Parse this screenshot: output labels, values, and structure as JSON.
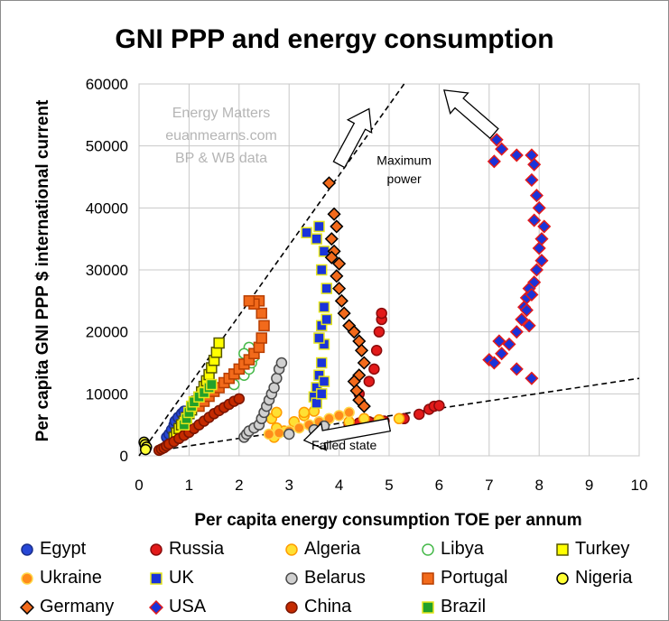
{
  "chart_data": {
    "type": "scatter",
    "title": "GNI PPP and energy consumption",
    "xlabel": "Per capita energy consumption TOE per annum",
    "ylabel": "Per capita GNI PPP $ international current",
    "xlim": [
      0,
      10
    ],
    "ylim": [
      0,
      60000
    ],
    "xticks": [
      "0",
      "1",
      "2",
      "3",
      "4",
      "5",
      "6",
      "7",
      "8",
      "9",
      "10"
    ],
    "yticks": [
      "0",
      "10000",
      "20000",
      "30000",
      "40000",
      "50000",
      "60000"
    ],
    "grid": true,
    "legend_position": "bottom",
    "watermark": [
      "Energy Matters",
      "euanmearns.com",
      "BP & WB data"
    ],
    "annotations": [
      {
        "text": "Maximum",
        "x": 5.3,
        "y": 47000
      },
      {
        "text": "power",
        "x": 5.3,
        "y": 44000
      },
      {
        "text": "Failed state",
        "x": 4.1,
        "y": 1000
      }
    ],
    "arrows": [
      {
        "from": [
          4.0,
          47000
        ],
        "to": [
          4.6,
          56000
        ]
      },
      {
        "from": [
          7.1,
          52000
        ],
        "to": [
          6.1,
          59000
        ]
      },
      {
        "from": [
          5.0,
          5000
        ],
        "to": [
          3.3,
          2500
        ]
      }
    ],
    "lines": [
      {
        "name": "Maximum power",
        "from": [
          0,
          0
        ],
        "to": [
          5.3,
          60000
        ],
        "style": "dashed"
      },
      {
        "name": "Failed state",
        "from": [
          0.5,
          1000
        ],
        "to": [
          10,
          12500
        ],
        "style": "dashed"
      }
    ],
    "series": [
      {
        "name": "Egypt",
        "marker": "circle",
        "color": "#2747d6",
        "edge": "#1a2e8a",
        "points": [
          [
            0.55,
            3000
          ],
          [
            0.6,
            3500
          ],
          [
            0.65,
            4200
          ],
          [
            0.7,
            5000
          ],
          [
            0.72,
            5600
          ],
          [
            0.78,
            6200
          ],
          [
            0.85,
            6800
          ],
          [
            0.9,
            7200
          ]
        ]
      },
      {
        "name": "Russia",
        "marker": "circle",
        "color": "#e21a1a",
        "edge": "#8a0b0b",
        "points": [
          [
            4.2,
            5000
          ],
          [
            4.4,
            5300
          ],
          [
            4.6,
            5500
          ],
          [
            4.9,
            5600
          ],
          [
            5.3,
            6000
          ],
          [
            5.6,
            6700
          ],
          [
            5.8,
            7500
          ],
          [
            5.9,
            8000
          ],
          [
            6.0,
            8100
          ],
          [
            4.4,
            10000
          ],
          [
            4.6,
            12000
          ],
          [
            4.7,
            14000
          ],
          [
            4.75,
            17000
          ],
          [
            4.8,
            20000
          ],
          [
            4.85,
            22000
          ],
          [
            4.85,
            23000
          ]
        ]
      },
      {
        "name": "Algeria",
        "marker": "circle",
        "color": "#ffe033",
        "edge": "#ff9c00",
        "points": [
          [
            2.7,
            3000
          ],
          [
            2.9,
            4000
          ],
          [
            2.75,
            4500
          ],
          [
            3.1,
            5500
          ],
          [
            3.3,
            6500
          ],
          [
            3.5,
            7200
          ],
          [
            3.3,
            7000
          ],
          [
            4.2,
            5500
          ],
          [
            4.5,
            6000
          ],
          [
            4.8,
            5800
          ],
          [
            5.2,
            6000
          ],
          [
            2.65,
            6000
          ],
          [
            2.75,
            7000
          ]
        ]
      },
      {
        "name": "Libya",
        "marker": "circle",
        "color": "#ffffff",
        "edge": "#46b94a",
        "points": [
          [
            1.9,
            11500
          ],
          [
            2.1,
            13000
          ],
          [
            2.2,
            14000
          ],
          [
            2.25,
            15000
          ],
          [
            2.3,
            16000
          ],
          [
            2.2,
            17500
          ],
          [
            2.1,
            16500
          ]
        ]
      },
      {
        "name": "Turkey",
        "marker": "square",
        "color": "#ffff00",
        "edge": "#555500",
        "points": [
          [
            0.7,
            3000
          ],
          [
            0.75,
            3700
          ],
          [
            0.8,
            4400
          ],
          [
            0.85,
            5000
          ],
          [
            0.9,
            5600
          ],
          [
            0.95,
            6200
          ],
          [
            1.0,
            6800
          ],
          [
            1.05,
            7400
          ],
          [
            1.1,
            8100
          ],
          [
            1.15,
            8800
          ],
          [
            1.2,
            9500
          ],
          [
            1.25,
            10300
          ],
          [
            1.3,
            11200
          ],
          [
            1.35,
            12100
          ],
          [
            1.4,
            13100
          ],
          [
            1.45,
            14200
          ],
          [
            1.5,
            15400
          ],
          [
            1.55,
            16700
          ],
          [
            1.6,
            18200
          ]
        ]
      },
      {
        "name": "Ukraine",
        "marker": "circle",
        "color": "#ff8c1a",
        "edge": "#ffd84a",
        "points": [
          [
            2.6,
            3500
          ],
          [
            2.8,
            3700
          ],
          [
            3.0,
            4000
          ],
          [
            3.2,
            4500
          ],
          [
            3.4,
            5000
          ],
          [
            3.6,
            5500
          ],
          [
            3.8,
            6000
          ],
          [
            4.0,
            6500
          ],
          [
            4.2,
            7000
          ]
        ]
      },
      {
        "name": "UK",
        "marker": "square",
        "color": "#1a33d9",
        "edge": "#e6e61a",
        "points": [
          [
            3.35,
            36000
          ],
          [
            3.55,
            35000
          ],
          [
            3.6,
            37000
          ],
          [
            3.7,
            33000
          ],
          [
            3.65,
            30000
          ],
          [
            3.75,
            27000
          ],
          [
            3.7,
            24000
          ],
          [
            3.65,
            21000
          ],
          [
            3.7,
            18000
          ],
          [
            3.65,
            15000
          ],
          [
            3.6,
            13000
          ],
          [
            3.55,
            11000
          ],
          [
            3.5,
            9500
          ],
          [
            3.55,
            8500
          ],
          [
            3.65,
            10000
          ],
          [
            3.7,
            12000
          ],
          [
            3.6,
            19000
          ],
          [
            3.75,
            22000
          ]
        ]
      },
      {
        "name": "Belarus",
        "marker": "circle",
        "color": "#d0d0d0",
        "edge": "#4a4a4a",
        "points": [
          [
            2.1,
            3000
          ],
          [
            2.15,
            3500
          ],
          [
            2.2,
            4000
          ],
          [
            2.3,
            4500
          ],
          [
            2.4,
            5000
          ],
          [
            2.45,
            6000
          ],
          [
            2.5,
            7000
          ],
          [
            2.55,
            8000
          ],
          [
            2.6,
            9000
          ],
          [
            2.65,
            10000
          ],
          [
            2.7,
            11000
          ],
          [
            2.75,
            12500
          ],
          [
            2.8,
            14000
          ],
          [
            2.85,
            15000
          ],
          [
            3.0,
            3500
          ],
          [
            3.5,
            4200
          ],
          [
            3.7,
            4800
          ]
        ]
      },
      {
        "name": "Portugal",
        "marker": "square",
        "color": "#f26a1b",
        "edge": "#b83e00",
        "points": [
          [
            1.2,
            8000
          ],
          [
            1.3,
            8800
          ],
          [
            1.4,
            9600
          ],
          [
            1.5,
            10400
          ],
          [
            1.6,
            11000
          ],
          [
            1.7,
            11800
          ],
          [
            1.8,
            12500
          ],
          [
            1.9,
            13200
          ],
          [
            2.0,
            14000
          ],
          [
            2.1,
            14800
          ],
          [
            2.2,
            15500
          ],
          [
            2.3,
            16500
          ],
          [
            2.4,
            17500
          ],
          [
            2.45,
            19000
          ],
          [
            2.5,
            21000
          ],
          [
            2.45,
            23000
          ],
          [
            2.4,
            25000
          ],
          [
            2.3,
            24500
          ],
          [
            2.2,
            25000
          ]
        ]
      },
      {
        "name": "Nigeria",
        "marker": "circle",
        "color": "#ffff33",
        "edge": "#000000",
        "points": [
          [
            0.1,
            2200
          ],
          [
            0.12,
            1800
          ],
          [
            0.15,
            1400
          ],
          [
            0.13,
            1000
          ]
        ]
      },
      {
        "name": "Germany",
        "marker": "diamond",
        "color": "#f26a1b",
        "edge": "#000000",
        "points": [
          [
            3.8,
            44000
          ],
          [
            3.9,
            39000
          ],
          [
            3.95,
            37000
          ],
          [
            3.85,
            35000
          ],
          [
            3.9,
            33000
          ],
          [
            4.0,
            31000
          ],
          [
            3.95,
            29000
          ],
          [
            4.0,
            27000
          ],
          [
            4.05,
            25000
          ],
          [
            4.1,
            23000
          ],
          [
            4.2,
            21000
          ],
          [
            4.3,
            20000
          ],
          [
            4.4,
            18500
          ],
          [
            4.45,
            17000
          ],
          [
            4.5,
            15000
          ],
          [
            4.4,
            13000
          ],
          [
            4.3,
            12000
          ],
          [
            4.35,
            10500
          ],
          [
            4.4,
            9000
          ],
          [
            4.5,
            8000
          ],
          [
            3.85,
            32000
          ]
        ]
      },
      {
        "name": "USA",
        "marker": "diamond",
        "color": "#1a33d9",
        "edge": "#e21a1a",
        "points": [
          [
            7.0,
            52500
          ],
          [
            7.15,
            51000
          ],
          [
            7.25,
            49500
          ],
          [
            7.1,
            47500
          ],
          [
            7.55,
            48500
          ],
          [
            7.85,
            48500
          ],
          [
            7.9,
            47000
          ],
          [
            7.85,
            44500
          ],
          [
            7.95,
            42000
          ],
          [
            8.0,
            40000
          ],
          [
            7.9,
            38000
          ],
          [
            8.1,
            37000
          ],
          [
            8.05,
            35000
          ],
          [
            8.0,
            33500
          ],
          [
            8.05,
            31500
          ],
          [
            7.95,
            30000
          ],
          [
            7.9,
            28000
          ],
          [
            7.8,
            27000
          ],
          [
            7.75,
            25500
          ],
          [
            7.7,
            24000
          ],
          [
            7.65,
            22000
          ],
          [
            7.55,
            20000
          ],
          [
            7.4,
            18000
          ],
          [
            7.2,
            18500
          ],
          [
            7.0,
            15500
          ],
          [
            7.1,
            15000
          ],
          [
            7.25,
            16500
          ],
          [
            7.55,
            14000
          ],
          [
            7.85,
            12500
          ],
          [
            7.8,
            21000
          ],
          [
            7.75,
            23500
          ],
          [
            7.85,
            26000
          ]
        ]
      },
      {
        "name": "China",
        "marker": "circle",
        "color": "#c42a00",
        "edge": "#7a1500",
        "points": [
          [
            0.4,
            900
          ],
          [
            0.45,
            1100
          ],
          [
            0.5,
            1300
          ],
          [
            0.55,
            1600
          ],
          [
            0.6,
            1900
          ],
          [
            0.7,
            2300
          ],
          [
            0.8,
            2800
          ],
          [
            0.9,
            3300
          ],
          [
            1.0,
            3800
          ],
          [
            1.1,
            4400
          ],
          [
            1.2,
            5000
          ],
          [
            1.3,
            5600
          ],
          [
            1.4,
            6200
          ],
          [
            1.5,
            6800
          ],
          [
            1.6,
            7300
          ],
          [
            1.7,
            7800
          ],
          [
            1.8,
            8300
          ],
          [
            1.9,
            8800
          ],
          [
            2.0,
            9200
          ]
        ]
      },
      {
        "name": "Brazil",
        "marker": "square",
        "color": "#22a02a",
        "edge": "#e6e61a",
        "points": [
          [
            0.9,
            5000
          ],
          [
            0.95,
            6000
          ],
          [
            1.0,
            7000
          ],
          [
            1.05,
            8000
          ],
          [
            1.1,
            8700
          ],
          [
            1.2,
            9500
          ],
          [
            1.3,
            10200
          ],
          [
            1.4,
            11000
          ],
          [
            1.45,
            11500
          ]
        ]
      }
    ]
  }
}
